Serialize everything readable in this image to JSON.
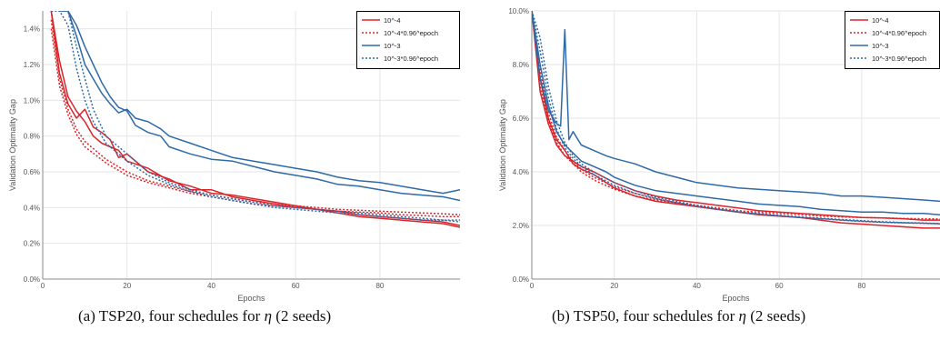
{
  "colors": {
    "red": "#d8262b",
    "blue": "#2e6aa8",
    "grid": "#e6e6e6",
    "axis": "#888888",
    "text": "#555555"
  },
  "captions": {
    "a": {
      "pre": "(a) TSP20, four schedules for ",
      "sym": "η",
      "post": " (2 seeds)"
    },
    "b": {
      "pre": "(b) TSP50, four schedules for ",
      "sym": "η",
      "post": " (2 seeds)"
    }
  },
  "chart_data": [
    {
      "type": "line",
      "title": "",
      "xlabel": "Epochs",
      "ylabel": "Validation Optimality Gap",
      "xlim": [
        0,
        99
      ],
      "ylim": [
        0,
        1.5
      ],
      "xticks": [
        0,
        20,
        40,
        60,
        80
      ],
      "xtick_labels": [
        "0",
        "20",
        "40",
        "60",
        "80"
      ],
      "yticks": [
        0,
        0.2,
        0.4,
        0.6,
        0.8,
        1.0,
        1.2,
        1.4
      ],
      "ytick_labels": [
        "0.0%",
        "0.2%",
        "0.4%",
        "0.6%",
        "0.8%",
        "1.0%",
        "1.2%",
        "1.4%"
      ],
      "grid": true,
      "legend_position": "top-right",
      "legend": [
        {
          "label": "10^-4",
          "color": "red",
          "dashed": false
        },
        {
          "label": "10^-4*0.96^epoch",
          "color": "red",
          "dashed": true
        },
        {
          "label": "10^-3",
          "color": "blue",
          "dashed": false
        },
        {
          "label": "10^-3*0.96^epoch",
          "color": "blue",
          "dashed": true
        }
      ],
      "series": [
        {
          "legend_index": 0,
          "color": "red",
          "dashed": false,
          "x": [
            2,
            4,
            6,
            8,
            10,
            12,
            14,
            16,
            18,
            20,
            25,
            30,
            35,
            40,
            45,
            50,
            55,
            60,
            65,
            70,
            75,
            80,
            85,
            90,
            95,
            99
          ],
          "y": [
            1.5,
            1.15,
            0.98,
            0.9,
            0.95,
            0.85,
            0.82,
            0.78,
            0.68,
            0.7,
            0.6,
            0.56,
            0.5,
            0.5,
            0.46,
            0.44,
            0.42,
            0.4,
            0.39,
            0.37,
            0.35,
            0.34,
            0.33,
            0.32,
            0.31,
            0.29
          ]
        },
        {
          "legend_index": 0,
          "color": "red",
          "dashed": false,
          "x": [
            2,
            4,
            6,
            8,
            10,
            12,
            14,
            16,
            18,
            20,
            25,
            30,
            35,
            40,
            45,
            50,
            55,
            60,
            65,
            70,
            75,
            80,
            85,
            90,
            95,
            99
          ],
          "y": [
            1.5,
            1.22,
            1.02,
            0.94,
            0.88,
            0.8,
            0.76,
            0.74,
            0.72,
            0.66,
            0.62,
            0.55,
            0.52,
            0.48,
            0.47,
            0.45,
            0.43,
            0.41,
            0.39,
            0.38,
            0.36,
            0.35,
            0.34,
            0.33,
            0.32,
            0.3
          ]
        },
        {
          "legend_index": 1,
          "color": "red",
          "dashed": true,
          "x": [
            2,
            4,
            6,
            8,
            10,
            15,
            20,
            25,
            30,
            35,
            40,
            45,
            50,
            55,
            60,
            65,
            70,
            75,
            80,
            85,
            90,
            95,
            99
          ],
          "y": [
            1.45,
            1.12,
            0.95,
            0.84,
            0.77,
            0.67,
            0.6,
            0.55,
            0.52,
            0.49,
            0.47,
            0.45,
            0.43,
            0.42,
            0.41,
            0.4,
            0.39,
            0.385,
            0.38,
            0.375,
            0.37,
            0.365,
            0.36
          ]
        },
        {
          "legend_index": 1,
          "color": "red",
          "dashed": true,
          "x": [
            2,
            4,
            6,
            8,
            10,
            15,
            20,
            25,
            30,
            35,
            40,
            45,
            50,
            55,
            60,
            65,
            70,
            75,
            80,
            85,
            90,
            95,
            99
          ],
          "y": [
            1.4,
            1.08,
            0.92,
            0.81,
            0.74,
            0.65,
            0.58,
            0.54,
            0.51,
            0.48,
            0.46,
            0.44,
            0.42,
            0.41,
            0.4,
            0.39,
            0.38,
            0.375,
            0.37,
            0.36,
            0.355,
            0.35,
            0.35
          ]
        },
        {
          "legend_index": 2,
          "color": "blue",
          "dashed": false,
          "x": [
            4,
            6,
            8,
            10,
            12,
            14,
            16,
            18,
            20,
            22,
            25,
            28,
            30,
            35,
            40,
            45,
            50,
            55,
            60,
            65,
            70,
            75,
            80,
            85,
            90,
            95,
            99
          ],
          "y": [
            1.5,
            1.5,
            1.36,
            1.2,
            1.12,
            1.04,
            0.98,
            0.93,
            0.95,
            0.9,
            0.88,
            0.84,
            0.8,
            0.76,
            0.72,
            0.68,
            0.66,
            0.64,
            0.62,
            0.6,
            0.57,
            0.55,
            0.54,
            0.52,
            0.5,
            0.48,
            0.5
          ]
        },
        {
          "legend_index": 2,
          "color": "blue",
          "dashed": false,
          "x": [
            4,
            6,
            8,
            10,
            12,
            14,
            16,
            18,
            20,
            22,
            25,
            28,
            30,
            35,
            40,
            45,
            50,
            55,
            60,
            65,
            70,
            75,
            80,
            85,
            90,
            95,
            99
          ],
          "y": [
            1.5,
            1.5,
            1.42,
            1.3,
            1.2,
            1.1,
            1.02,
            0.96,
            0.94,
            0.86,
            0.82,
            0.8,
            0.74,
            0.7,
            0.67,
            0.66,
            0.63,
            0.6,
            0.58,
            0.56,
            0.53,
            0.52,
            0.5,
            0.48,
            0.47,
            0.46,
            0.44
          ]
        },
        {
          "legend_index": 3,
          "color": "blue",
          "dashed": true,
          "x": [
            2,
            4,
            6,
            8,
            10,
            12,
            15,
            20,
            25,
            30,
            35,
            40,
            45,
            50,
            55,
            60,
            65,
            70,
            75,
            80,
            85,
            90,
            95,
            99
          ],
          "y": [
            1.5,
            1.5,
            1.42,
            1.18,
            1.0,
            0.88,
            0.76,
            0.66,
            0.58,
            0.53,
            0.49,
            0.46,
            0.44,
            0.42,
            0.4,
            0.39,
            0.38,
            0.37,
            0.36,
            0.35,
            0.34,
            0.33,
            0.33,
            0.32
          ]
        },
        {
          "legend_index": 3,
          "color": "blue",
          "dashed": true,
          "x": [
            2,
            4,
            6,
            8,
            10,
            12,
            15,
            20,
            25,
            30,
            35,
            40,
            45,
            50,
            55,
            60,
            65,
            70,
            75,
            80,
            85,
            90,
            95,
            99
          ],
          "y": [
            1.5,
            1.5,
            1.5,
            1.3,
            1.12,
            0.95,
            0.8,
            0.7,
            0.6,
            0.54,
            0.5,
            0.47,
            0.45,
            0.43,
            0.41,
            0.4,
            0.39,
            0.38,
            0.37,
            0.36,
            0.35,
            0.34,
            0.33,
            0.33
          ]
        }
      ]
    },
    {
      "type": "line",
      "title": "",
      "xlabel": "Epochs",
      "ylabel": "Validation Optimality Gap",
      "xlim": [
        0,
        99
      ],
      "ylim": [
        0,
        10
      ],
      "xticks": [
        0,
        20,
        40,
        60,
        80
      ],
      "xtick_labels": [
        "0",
        "20",
        "40",
        "60",
        "80"
      ],
      "yticks": [
        0,
        2,
        4,
        6,
        8,
        10
      ],
      "ytick_labels": [
        "0.0%",
        "2.0%",
        "4.0%",
        "6.0%",
        "8.0%",
        "10.0%"
      ],
      "grid": true,
      "legend_position": "top-right",
      "legend": [
        {
          "label": "10^-4",
          "color": "red",
          "dashed": false
        },
        {
          "label": "10^-4*0.96^epoch",
          "color": "red",
          "dashed": true
        },
        {
          "label": "10^-3",
          "color": "blue",
          "dashed": false
        },
        {
          "label": "10^-3*0.96^epoch",
          "color": "blue",
          "dashed": true
        }
      ],
      "series": [
        {
          "legend_index": 0,
          "color": "red",
          "dashed": false,
          "x": [
            0,
            2,
            4,
            6,
            8,
            10,
            12,
            15,
            20,
            25,
            30,
            35,
            40,
            45,
            50,
            55,
            60,
            65,
            70,
            75,
            80,
            85,
            90,
            95,
            99
          ],
          "y": [
            10,
            7.5,
            6.0,
            5.2,
            4.8,
            4.3,
            4.1,
            3.9,
            3.4,
            3.1,
            2.9,
            2.8,
            2.7,
            2.6,
            2.5,
            2.4,
            2.35,
            2.3,
            2.2,
            2.1,
            2.05,
            2.0,
            1.95,
            1.9,
            1.9
          ]
        },
        {
          "legend_index": 0,
          "color": "red",
          "dashed": false,
          "x": [
            0,
            2,
            4,
            6,
            8,
            10,
            12,
            15,
            20,
            25,
            30,
            35,
            40,
            45,
            50,
            55,
            60,
            65,
            70,
            75,
            80,
            85,
            90,
            95,
            99
          ],
          "y": [
            10,
            7.0,
            5.8,
            5.0,
            4.6,
            4.4,
            4.2,
            4.0,
            3.6,
            3.3,
            3.1,
            2.95,
            2.85,
            2.75,
            2.65,
            2.55,
            2.5,
            2.45,
            2.4,
            2.35,
            2.3,
            2.28,
            2.25,
            2.2,
            2.2
          ]
        },
        {
          "legend_index": 1,
          "color": "red",
          "dashed": true,
          "x": [
            0,
            2,
            4,
            6,
            8,
            10,
            12,
            15,
            20,
            25,
            30,
            35,
            40,
            45,
            50,
            55,
            60,
            65,
            70,
            75,
            80,
            85,
            90,
            95,
            99
          ],
          "y": [
            10,
            7.2,
            5.9,
            5.1,
            4.6,
            4.3,
            4.0,
            3.7,
            3.35,
            3.1,
            2.95,
            2.85,
            2.75,
            2.65,
            2.55,
            2.5,
            2.45,
            2.4,
            2.35,
            2.32,
            2.3,
            2.28,
            2.26,
            2.25,
            2.24
          ]
        },
        {
          "legend_index": 1,
          "color": "red",
          "dashed": true,
          "x": [
            0,
            2,
            4,
            6,
            8,
            10,
            12,
            15,
            20,
            25,
            30,
            35,
            40,
            45,
            50,
            55,
            60,
            65,
            70,
            75,
            80,
            85,
            90,
            95,
            99
          ],
          "y": [
            10,
            7.8,
            6.2,
            5.3,
            4.8,
            4.4,
            4.1,
            3.8,
            3.45,
            3.2,
            3.0,
            2.85,
            2.7,
            2.6,
            2.5,
            2.42,
            2.36,
            2.3,
            2.25,
            2.2,
            2.15,
            2.12,
            2.1,
            2.08,
            2.06
          ]
        },
        {
          "legend_index": 2,
          "color": "blue",
          "dashed": false,
          "x": [
            0,
            2,
            4,
            6,
            7,
            8,
            9,
            10,
            12,
            15,
            18,
            20,
            25,
            30,
            35,
            40,
            45,
            50,
            55,
            60,
            65,
            70,
            75,
            80,
            85,
            90,
            95,
            99
          ],
          "y": [
            10,
            7.5,
            6.3,
            5.8,
            5.7,
            9.3,
            5.2,
            5.5,
            5.0,
            4.8,
            4.6,
            4.5,
            4.3,
            4.0,
            3.8,
            3.6,
            3.5,
            3.4,
            3.35,
            3.3,
            3.25,
            3.2,
            3.1,
            3.1,
            3.05,
            3.0,
            2.95,
            2.9
          ]
        },
        {
          "legend_index": 2,
          "color": "blue",
          "dashed": false,
          "x": [
            0,
            2,
            4,
            6,
            8,
            10,
            12,
            15,
            18,
            20,
            25,
            30,
            35,
            40,
            45,
            50,
            55,
            60,
            65,
            70,
            75,
            80,
            85,
            90,
            95,
            99
          ],
          "y": [
            10,
            8.0,
            6.5,
            5.5,
            5.0,
            4.7,
            4.4,
            4.2,
            4.0,
            3.8,
            3.5,
            3.3,
            3.2,
            3.1,
            3.0,
            2.9,
            2.8,
            2.75,
            2.7,
            2.6,
            2.55,
            2.5,
            2.5,
            2.45,
            2.45,
            2.4
          ]
        },
        {
          "legend_index": 3,
          "color": "blue",
          "dashed": true,
          "x": [
            0,
            2,
            4,
            6,
            8,
            10,
            12,
            15,
            20,
            25,
            30,
            35,
            40,
            45,
            50,
            55,
            60,
            65,
            70,
            75,
            80,
            85,
            90,
            95,
            99
          ],
          "y": [
            10,
            8.5,
            6.8,
            5.6,
            4.9,
            4.5,
            4.2,
            3.9,
            3.5,
            3.2,
            3.0,
            2.85,
            2.7,
            2.6,
            2.5,
            2.42,
            2.35,
            2.3,
            2.25,
            2.2,
            2.16,
            2.12,
            2.1,
            2.08,
            2.06
          ]
        },
        {
          "legend_index": 3,
          "color": "blue",
          "dashed": true,
          "x": [
            0,
            2,
            4,
            6,
            8,
            10,
            12,
            15,
            20,
            25,
            30,
            35,
            40,
            45,
            50,
            55,
            60,
            65,
            70,
            75,
            80,
            85,
            90,
            95,
            99
          ],
          "y": [
            10,
            9.0,
            7.2,
            5.9,
            5.1,
            4.6,
            4.3,
            4.0,
            3.6,
            3.3,
            3.05,
            2.9,
            2.75,
            2.62,
            2.52,
            2.45,
            2.38,
            2.32,
            2.27,
            2.22,
            2.18,
            2.14,
            2.11,
            2.09,
            2.07
          ]
        }
      ]
    }
  ]
}
